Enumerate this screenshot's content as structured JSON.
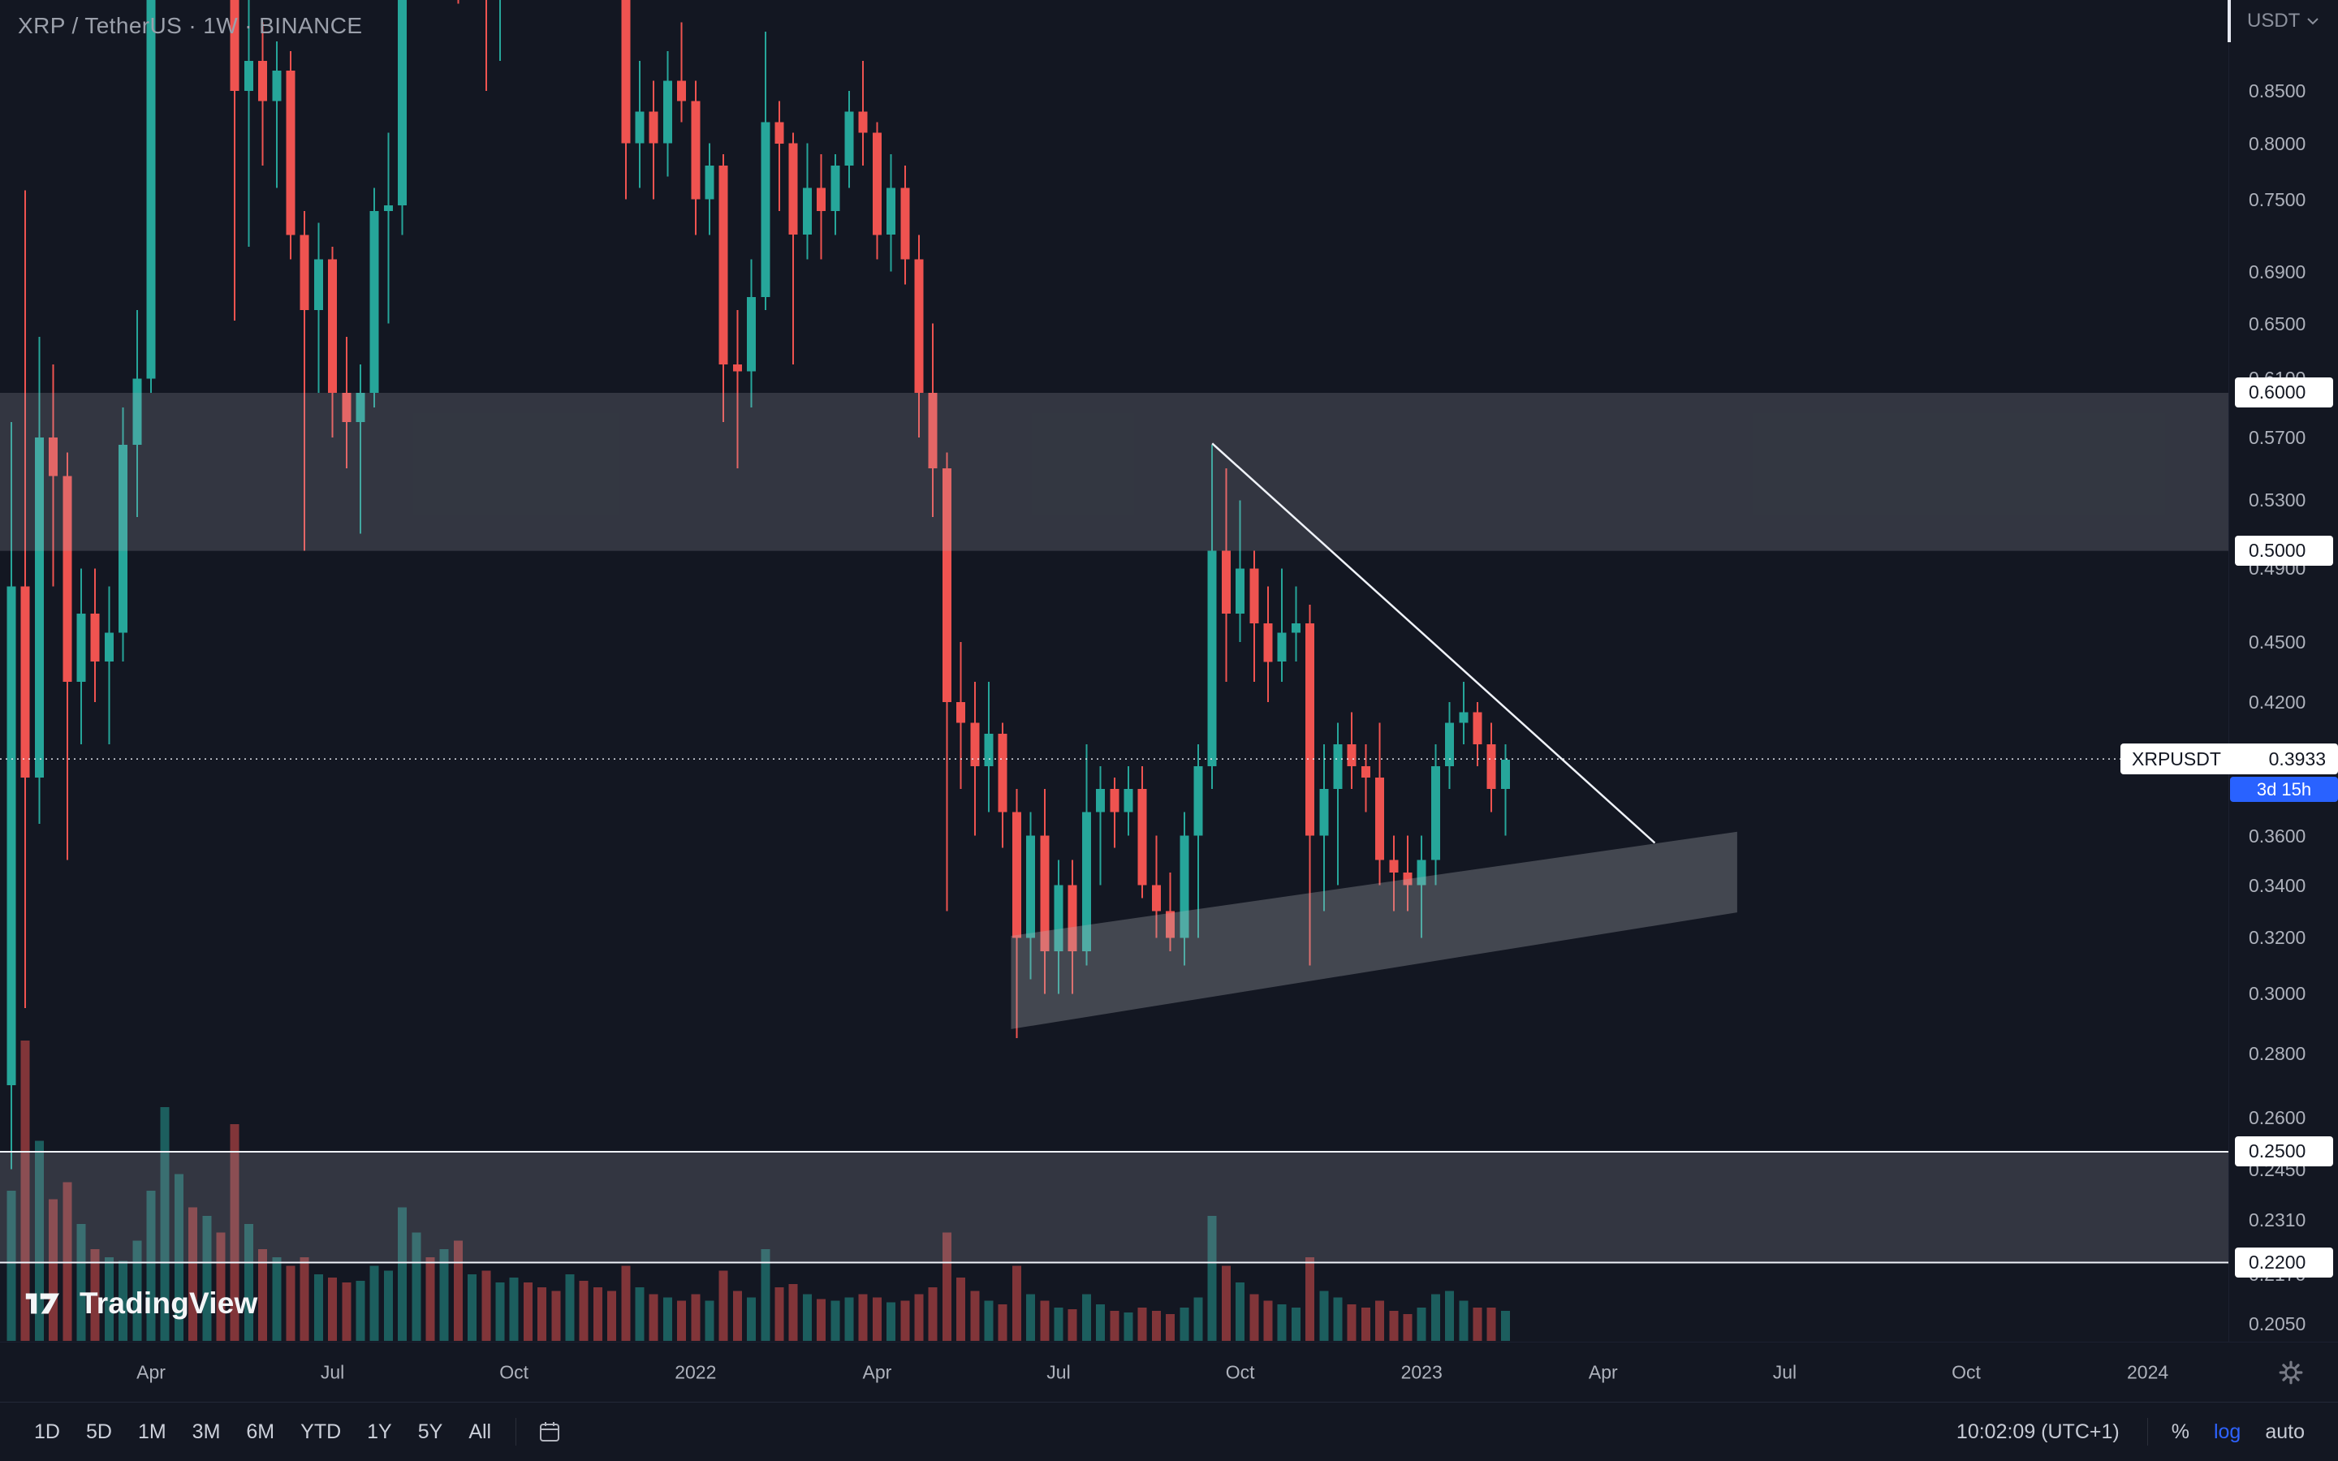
{
  "header": {
    "symbol_title": "XRP / TetherUS · 1W · BINANCE",
    "currency": "USDT"
  },
  "watermark": {
    "brand": "TradingView"
  },
  "price_axis": {
    "labels": [
      "0.8500",
      "0.8000",
      "0.7500",
      "0.6900",
      "0.6500",
      "0.6100",
      "0.5700",
      "0.5300",
      "0.4900",
      "0.4500",
      "0.4200",
      "0.3600",
      "0.3400",
      "0.3200",
      "0.3000",
      "0.2800",
      "0.2600",
      "0.2450",
      "0.2310",
      "0.2170",
      "0.2050"
    ],
    "level_badges": [
      "0.6000",
      "0.5000",
      "0.2500",
      "0.2200"
    ],
    "price_badge": {
      "symbol": "XRPUSDT",
      "price": "0.3933",
      "countdown": "3d 15h"
    }
  },
  "time_axis": {
    "labels": [
      {
        "text": "Apr",
        "i": 10
      },
      {
        "text": "Jul",
        "i": 23
      },
      {
        "text": "Oct",
        "i": 36
      },
      {
        "text": "2022",
        "i": 49
      },
      {
        "text": "Apr",
        "i": 62
      },
      {
        "text": "Jul",
        "i": 75
      },
      {
        "text": "Oct",
        "i": 88
      },
      {
        "text": "2023",
        "i": 101
      },
      {
        "text": "Apr",
        "i": 114
      },
      {
        "text": "Jul",
        "i": 127
      },
      {
        "text": "Oct",
        "i": 140
      },
      {
        "text": "2024",
        "i": 153
      }
    ]
  },
  "toolbar": {
    "ranges": [
      "1D",
      "5D",
      "1M",
      "3M",
      "6M",
      "YTD",
      "1Y",
      "5Y",
      "All"
    ],
    "clock": "10:02:09 (UTC+1)",
    "percent_label": "%",
    "log_label": "log",
    "auto_label": "auto"
  },
  "colors": {
    "background": "#131722",
    "up": "#26a69a",
    "down": "#ef5350",
    "up_volume": "rgba(38,166,154,0.5)",
    "down_volume": "rgba(239,83,80,0.5)",
    "zone_fill": "rgba(178,181,190,0.20)",
    "channel_fill": "rgba(178,181,190,0.30)",
    "level_line": "#f0f3fa",
    "trendline": "#f0f3fa",
    "price_line": "rgba(240,243,250,0.8)",
    "accent_blue": "#2962ff"
  },
  "chart_data": {
    "type": "candlestick",
    "title": "XRP / TetherUS weekly chart on Binance",
    "symbol": "XRPUSDT",
    "exchange": "BINANCE",
    "timeframe": "1W",
    "scale": "log",
    "last_price": 0.3933,
    "countdown": "3d 15h",
    "visible_price_range": [
      0.205,
      0.88
    ],
    "x_start_week": "2021-01-25",
    "ohlc_format": [
      "open",
      "high",
      "low",
      "close"
    ],
    "candles": [
      [
        0.27,
        0.58,
        0.245,
        0.48
      ],
      [
        0.48,
        0.758,
        0.295,
        0.385
      ],
      [
        0.385,
        0.64,
        0.365,
        0.57
      ],
      [
        0.57,
        0.62,
        0.48,
        0.545
      ],
      [
        0.545,
        0.56,
        0.35,
        0.43
      ],
      [
        0.43,
        0.49,
        0.4,
        0.465
      ],
      [
        0.465,
        0.49,
        0.42,
        0.44
      ],
      [
        0.44,
        0.48,
        0.4,
        0.455
      ],
      [
        0.455,
        0.59,
        0.44,
        0.565
      ],
      [
        0.565,
        0.66,
        0.52,
        0.61
      ],
      [
        0.61,
        1.12,
        0.6,
        1.05
      ],
      [
        1.05,
        1.5,
        0.98,
        1.4
      ],
      [
        1.4,
        1.96,
        1.28,
        1.56
      ],
      [
        1.56,
        1.65,
        1.05,
        1.1
      ],
      [
        1.1,
        1.67,
        1.08,
        1.57
      ],
      [
        1.57,
        1.62,
        1.1,
        1.38
      ],
      [
        1.38,
        1.42,
        0.652,
        0.85
      ],
      [
        0.85,
        0.99,
        0.71,
        0.88
      ],
      [
        0.88,
        0.92,
        0.78,
        0.84
      ],
      [
        0.84,
        0.9,
        0.76,
        0.87
      ],
      [
        0.87,
        0.89,
        0.7,
        0.72
      ],
      [
        0.72,
        0.74,
        0.5,
        0.66
      ],
      [
        0.66,
        0.73,
        0.6,
        0.7
      ],
      [
        0.7,
        0.71,
        0.57,
        0.6
      ],
      [
        0.6,
        0.64,
        0.55,
        0.58
      ],
      [
        0.58,
        0.62,
        0.51,
        0.6
      ],
      [
        0.6,
        0.76,
        0.59,
        0.74
      ],
      [
        0.74,
        0.81,
        0.65,
        0.745
      ],
      [
        0.745,
        1.07,
        0.72,
        1.05
      ],
      [
        1.05,
        1.28,
        0.98,
        1.2
      ],
      [
        1.2,
        1.23,
        1.05,
        1.1
      ],
      [
        1.1,
        1.38,
        1.05,
        1.28
      ],
      [
        1.28,
        1.42,
        0.94,
        1.07
      ],
      [
        1.07,
        1.15,
        1.0,
        1.08
      ],
      [
        1.08,
        1.1,
        0.85,
        0.95
      ],
      [
        0.95,
        1.08,
        0.88,
        1.05
      ],
      [
        1.05,
        1.2,
        1.0,
        1.15
      ],
      [
        1.15,
        1.18,
        1.05,
        1.12
      ],
      [
        1.12,
        1.18,
        1.04,
        1.1
      ],
      [
        1.1,
        1.14,
        1.0,
        1.08
      ],
      [
        1.08,
        1.3,
        1.05,
        1.25
      ],
      [
        1.25,
        1.34,
        1.15,
        1.2
      ],
      [
        1.2,
        1.22,
        1.0,
        1.05
      ],
      [
        1.05,
        1.13,
        0.95,
        0.98
      ],
      [
        0.98,
        1.02,
        0.75,
        0.8
      ],
      [
        0.8,
        0.88,
        0.76,
        0.83
      ],
      [
        0.83,
        0.86,
        0.75,
        0.8
      ],
      [
        0.8,
        0.89,
        0.77,
        0.86
      ],
      [
        0.86,
        0.92,
        0.82,
        0.84
      ],
      [
        0.84,
        0.86,
        0.72,
        0.75
      ],
      [
        0.75,
        0.8,
        0.72,
        0.78
      ],
      [
        0.78,
        0.79,
        0.58,
        0.62
      ],
      [
        0.62,
        0.66,
        0.55,
        0.615
      ],
      [
        0.615,
        0.7,
        0.59,
        0.67
      ],
      [
        0.67,
        0.91,
        0.66,
        0.82
      ],
      [
        0.82,
        0.84,
        0.74,
        0.8
      ],
      [
        0.8,
        0.81,
        0.62,
        0.72
      ],
      [
        0.72,
        0.8,
        0.7,
        0.76
      ],
      [
        0.76,
        0.79,
        0.7,
        0.74
      ],
      [
        0.74,
        0.79,
        0.72,
        0.78
      ],
      [
        0.78,
        0.85,
        0.76,
        0.83
      ],
      [
        0.83,
        0.88,
        0.78,
        0.81
      ],
      [
        0.81,
        0.82,
        0.7,
        0.72
      ],
      [
        0.72,
        0.79,
        0.69,
        0.76
      ],
      [
        0.76,
        0.78,
        0.68,
        0.7
      ],
      [
        0.7,
        0.72,
        0.57,
        0.6
      ],
      [
        0.6,
        0.65,
        0.52,
        0.55
      ],
      [
        0.55,
        0.56,
        0.33,
        0.42
      ],
      [
        0.42,
        0.45,
        0.38,
        0.41
      ],
      [
        0.41,
        0.43,
        0.36,
        0.39
      ],
      [
        0.39,
        0.43,
        0.37,
        0.405
      ],
      [
        0.405,
        0.41,
        0.355,
        0.37
      ],
      [
        0.37,
        0.38,
        0.285,
        0.32
      ],
      [
        0.32,
        0.37,
        0.305,
        0.36
      ],
      [
        0.36,
        0.38,
        0.3,
        0.315
      ],
      [
        0.315,
        0.35,
        0.3,
        0.34
      ],
      [
        0.34,
        0.35,
        0.3,
        0.315
      ],
      [
        0.315,
        0.4,
        0.31,
        0.37
      ],
      [
        0.37,
        0.39,
        0.34,
        0.38
      ],
      [
        0.38,
        0.385,
        0.355,
        0.37
      ],
      [
        0.37,
        0.39,
        0.36,
        0.38
      ],
      [
        0.38,
        0.39,
        0.335,
        0.34
      ],
      [
        0.34,
        0.36,
        0.32,
        0.33
      ],
      [
        0.33,
        0.345,
        0.315,
        0.32
      ],
      [
        0.32,
        0.37,
        0.31,
        0.36
      ],
      [
        0.36,
        0.4,
        0.32,
        0.39
      ],
      [
        0.39,
        0.565,
        0.38,
        0.5
      ],
      [
        0.5,
        0.55,
        0.43,
        0.465
      ],
      [
        0.465,
        0.53,
        0.45,
        0.49
      ],
      [
        0.49,
        0.5,
        0.43,
        0.46
      ],
      [
        0.46,
        0.48,
        0.42,
        0.44
      ],
      [
        0.44,
        0.49,
        0.43,
        0.455
      ],
      [
        0.455,
        0.48,
        0.44,
        0.46
      ],
      [
        0.46,
        0.47,
        0.31,
        0.36
      ],
      [
        0.36,
        0.4,
        0.33,
        0.38
      ],
      [
        0.38,
        0.41,
        0.34,
        0.4
      ],
      [
        0.4,
        0.415,
        0.38,
        0.39
      ],
      [
        0.39,
        0.4,
        0.37,
        0.385
      ],
      [
        0.385,
        0.41,
        0.34,
        0.35
      ],
      [
        0.35,
        0.36,
        0.33,
        0.345
      ],
      [
        0.345,
        0.36,
        0.33,
        0.34
      ],
      [
        0.34,
        0.36,
        0.32,
        0.35
      ],
      [
        0.35,
        0.4,
        0.34,
        0.39
      ],
      [
        0.39,
        0.42,
        0.38,
        0.41
      ],
      [
        0.41,
        0.43,
        0.4,
        0.415
      ],
      [
        0.415,
        0.42,
        0.39,
        0.4
      ],
      [
        0.4,
        0.41,
        0.37,
        0.38
      ],
      [
        0.38,
        0.4,
        0.36,
        0.393
      ]
    ],
    "volumes": [
      9.0,
      18.0,
      12.0,
      8.5,
      9.5,
      7.0,
      5.5,
      5.0,
      4.8,
      6.0,
      9.0,
      14.0,
      10.0,
      8.0,
      7.5,
      6.5,
      13.0,
      7.0,
      5.5,
      5.0,
      4.5,
      5.0,
      4.0,
      3.8,
      3.5,
      3.6,
      4.5,
      4.2,
      8.0,
      6.5,
      5.0,
      5.5,
      6.0,
      4.0,
      4.2,
      3.5,
      3.8,
      3.5,
      3.2,
      3.0,
      4.0,
      3.6,
      3.2,
      3.0,
      4.5,
      3.2,
      2.8,
      2.6,
      2.4,
      2.8,
      2.4,
      4.2,
      3.0,
      2.6,
      5.5,
      3.2,
      3.4,
      2.8,
      2.5,
      2.4,
      2.6,
      2.8,
      2.6,
      2.3,
      2.4,
      2.8,
      3.2,
      6.5,
      3.8,
      3.0,
      2.4,
      2.2,
      4.5,
      2.8,
      2.4,
      2.0,
      1.9,
      2.8,
      2.2,
      1.8,
      1.7,
      2.0,
      1.8,
      1.6,
      2.0,
      2.6,
      7.5,
      4.5,
      3.5,
      2.8,
      2.4,
      2.2,
      2.0,
      5.0,
      3.0,
      2.6,
      2.2,
      2.0,
      2.4,
      1.8,
      1.6,
      2.0,
      2.8,
      3.0,
      2.4,
      2.0,
      2.0,
      1.8
    ],
    "zones": [
      {
        "from": 0.5,
        "to": 0.6
      },
      {
        "from": 0.22,
        "to": 0.25
      }
    ],
    "level_lines": [
      0.25,
      0.22
    ],
    "trendline": {
      "from": {
        "i": 86,
        "price": 0.566
      },
      "to": {
        "i": 117.7,
        "price": 0.357
      }
    },
    "channel": {
      "points": [
        [
          71.6,
          0.3207
        ],
        [
          123.6,
          0.3616
        ],
        [
          123.6,
          0.3295
        ],
        [
          71.6,
          0.288
        ]
      ]
    }
  }
}
